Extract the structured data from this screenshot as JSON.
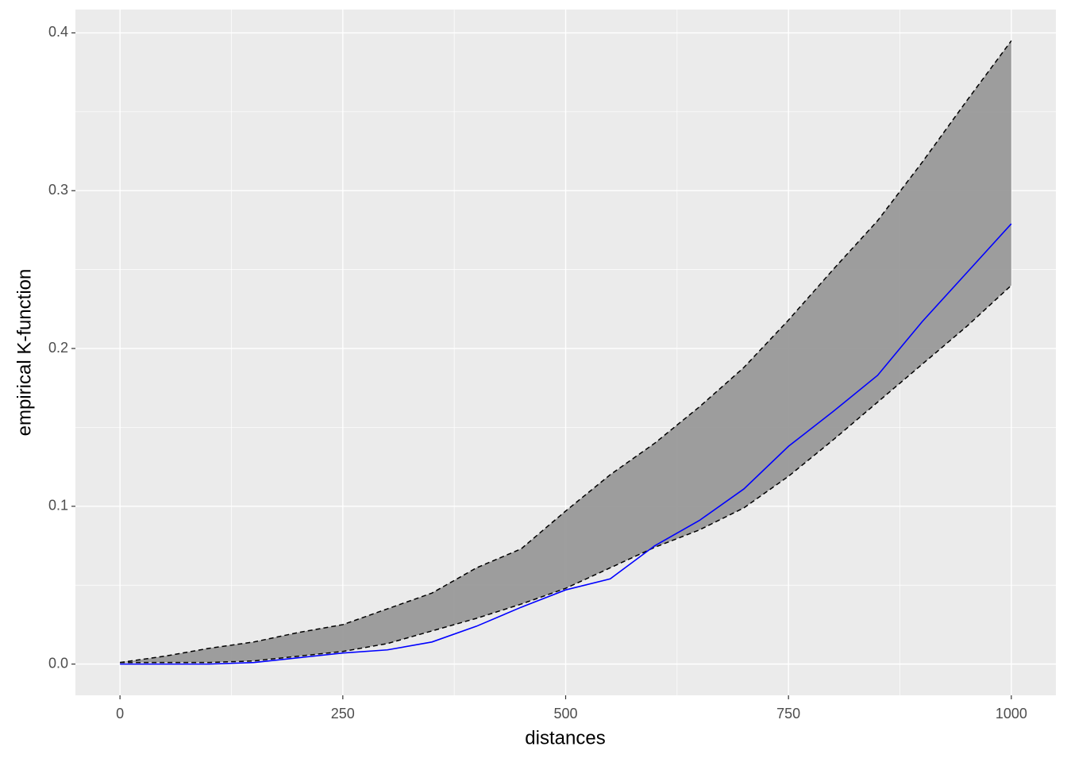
{
  "chart_data": {
    "type": "line",
    "x_label": "distances",
    "y_label": "empirical K-function",
    "x": [
      0,
      50,
      100,
      150,
      200,
      250,
      300,
      350,
      400,
      450,
      500,
      550,
      600,
      650,
      700,
      750,
      800,
      850,
      900,
      950,
      1000
    ],
    "values": [
      0,
      0,
      0,
      0.001,
      0.004,
      0.007,
      0.009,
      0.014,
      0.024,
      0.036,
      0.047,
      0.054,
      0.075,
      0.091,
      0.111,
      0.138,
      0.16,
      0.183,
      0.217,
      0.248,
      0.279
    ],
    "color": "#0000ff",
    "envelope": {
      "upper": [
        0.001,
        0.005,
        0.01,
        0.014,
        0.02,
        0.025,
        0.035,
        0.045,
        0.061,
        0.073,
        0.097,
        0.12,
        0.14,
        0.163,
        0.188,
        0.218,
        0.25,
        0.281,
        0.318,
        0.357,
        0.395
      ],
      "lower": [
        0.001,
        0.001,
        0.001,
        0.002,
        0.005,
        0.008,
        0.013,
        0.021,
        0.029,
        0.038,
        0.048,
        0.061,
        0.074,
        0.085,
        0.099,
        0.119,
        0.142,
        0.166,
        0.19,
        0.214,
        0.24
      ],
      "fill": "#999999",
      "line_color": "#000000"
    },
    "xlim": [
      -50,
      1050
    ],
    "ylim": [
      -0.0198,
      0.4148
    ],
    "xticks": [
      0,
      250,
      500,
      750,
      1000
    ],
    "yticks": [
      {
        "value": 0,
        "label": "0.0"
      },
      {
        "value": 0.1,
        "label": "0.1"
      },
      {
        "value": 0.2,
        "label": "0.2"
      },
      {
        "value": 0.3,
        "label": "0.3"
      },
      {
        "value": 0.4,
        "label": "0.4"
      }
    ],
    "grid": true,
    "panel_background": "#ebebeb"
  }
}
